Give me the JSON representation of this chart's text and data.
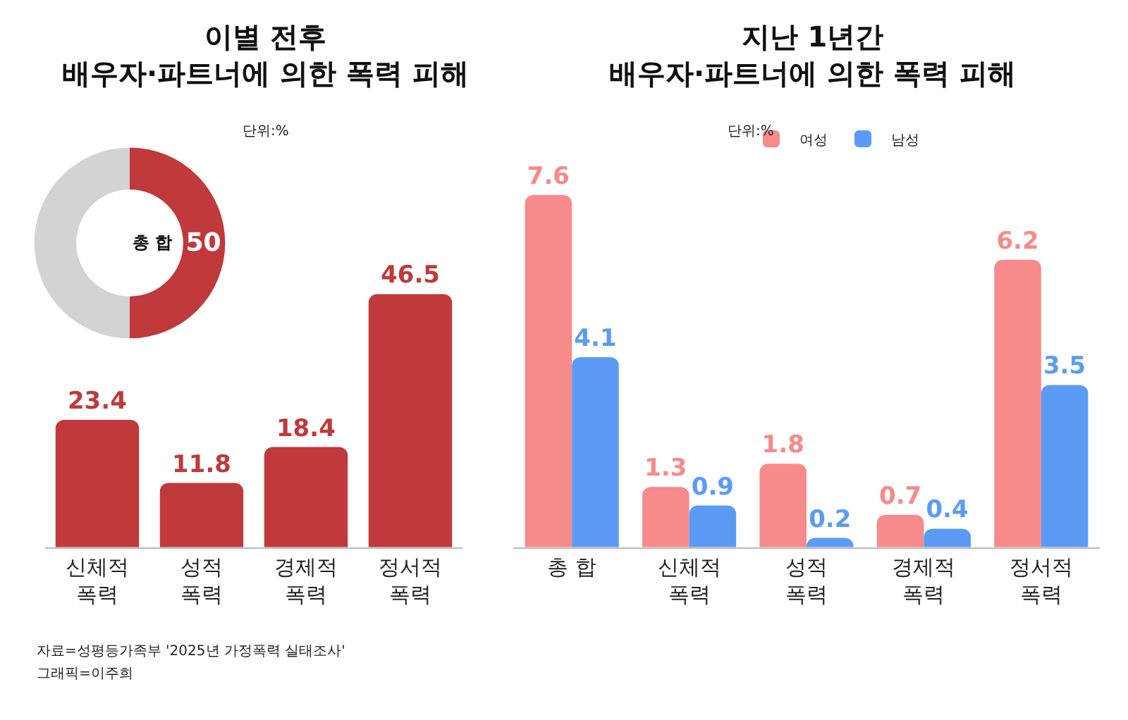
{
  "chart_data": [
    {
      "type": "donut",
      "title": "이별 전후\n배우자·파트너에 의한 폭력 피해",
      "subtitle": "단위:%",
      "categories": [
        null,
        null
      ],
      "values": [
        50,
        50
      ],
      "colors": [
        "#c0393b",
        "#d3d3d3"
      ],
      "value_labels": [
        "50",
        null
      ],
      "annotations": [
        "총 합"
      ],
      "legend": false
    },
    {
      "type": "bar",
      "categories": [
        "신체적\n폭력",
        "성적\n폭력",
        "경제적\n폭력",
        "정서적\n폭력"
      ],
      "values": [
        23.4,
        11.8,
        18.4,
        46.5
      ],
      "color": "#c0393b",
      "data_labels": true,
      "legend": false,
      "annotations": [
        "자료=성평등가족부 '2025년 가정폭력 실태조사'",
        "그래픽=이주희"
      ]
    },
    {
      "type": "bar",
      "title": "지난 1년간\n배우자·파트너에 의한 폭력 피해",
      "subtitle": "단위:%",
      "categories": [
        "총 합",
        "신체적\n폭력",
        "성적\n폭력",
        "경제적\n폭력",
        "정서적\n폭력"
      ],
      "data_labels": true,
      "legend": "top",
      "series": [
        {
          "name": "여성",
          "color": "#f78a8a",
          "values": [
            7.6,
            1.3,
            1.8,
            0.7,
            6.2
          ]
        },
        {
          "name": "남성",
          "color": "#5b9bf5",
          "values": [
            4.1,
            0.9,
            0.2,
            0.4,
            3.5
          ]
        }
      ]
    }
  ]
}
